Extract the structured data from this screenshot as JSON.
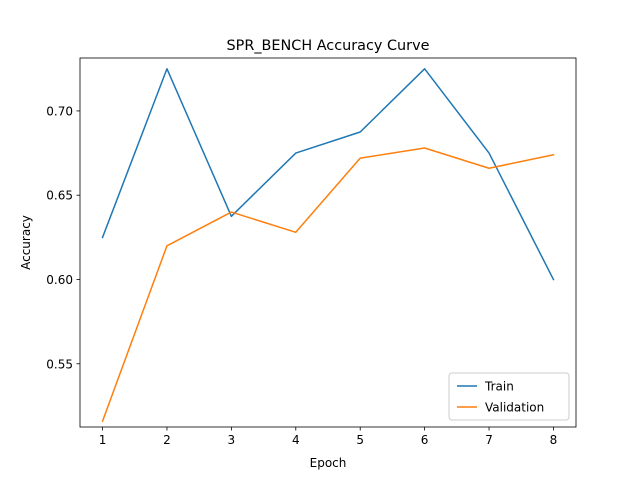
{
  "chart_data": {
    "type": "line",
    "title": "SPR_BENCH Accuracy Curve",
    "xlabel": "Epoch",
    "ylabel": "Accuracy",
    "x": [
      1,
      2,
      3,
      4,
      5,
      6,
      7,
      8
    ],
    "xticks": [
      "1",
      "2",
      "3",
      "4",
      "5",
      "6",
      "7",
      "8"
    ],
    "yticks": [
      "0.55",
      "0.60",
      "0.65",
      "0.70"
    ],
    "xlim": [
      0.65,
      8.35
    ],
    "ylim": [
      0.5125,
      0.7314
    ],
    "grid": false,
    "legend_position": "lower-right",
    "series": [
      {
        "name": "Train",
        "color": "#1f77b4",
        "values": [
          0.625,
          0.725,
          0.6375,
          0.675,
          0.6875,
          0.725,
          0.675,
          0.6
        ]
      },
      {
        "name": "Validation",
        "color": "#ff7f0e",
        "values": [
          0.516,
          0.62,
          0.64,
          0.628,
          0.672,
          0.678,
          0.666,
          0.674
        ]
      }
    ]
  }
}
